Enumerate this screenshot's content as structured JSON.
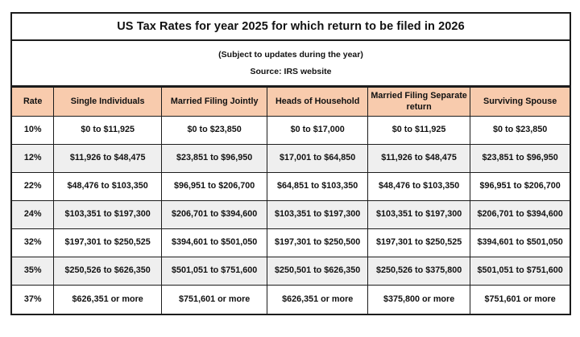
{
  "title": "US Tax Rates for year 2025 for which return to be filed in 2026",
  "subtitle_line1": "(Subject to updates during the year)",
  "subtitle_line2": "Source: IRS website",
  "colors": {
    "header_bg": "#f8cbad",
    "alt_row_bg": "#efefef",
    "border": "#1c1c1c"
  },
  "table": {
    "headers": [
      "Rate",
      "Single Individuals",
      "Married Filing Jointly",
      "Heads of Household",
      "Married Filing Separate return",
      "Surviving Spouse"
    ],
    "rows": [
      [
        "10%",
        "$0 to $11,925",
        "$0 to $23,850",
        "$0 to $17,000",
        "$0 to $11,925",
        "$0 to $23,850"
      ],
      [
        "12%",
        "$11,926 to $48,475",
        "$23,851 to $96,950",
        "$17,001 to $64,850",
        "$11,926 to $48,475",
        "$23,851 to $96,950"
      ],
      [
        "22%",
        "$48,476 to $103,350",
        "$96,951 to $206,700",
        "$64,851 to $103,350",
        "$48,476 to $103,350",
        "$96,951 to $206,700"
      ],
      [
        "24%",
        "$103,351 to $197,300",
        "$206,701 to $394,600",
        "$103,351 to $197,300",
        "$103,351 to $197,300",
        "$206,701 to $394,600"
      ],
      [
        "32%",
        "$197,301 to $250,525",
        "$394,601 to $501,050",
        "$197,301 to $250,500",
        "$197,301 to $250,525",
        "$394,601 to $501,050"
      ],
      [
        "35%",
        "$250,526 to $626,350",
        "$501,051 to $751,600",
        "$250,501 to $626,350",
        "$250,526 to $375,800",
        "$501,051 to $751,600"
      ],
      [
        "37%",
        "$626,351 or more",
        "$751,601 or more",
        "$626,351 or more",
        "$375,800 or more",
        "$751,601 or more"
      ]
    ]
  },
  "chart_data": {
    "type": "table",
    "title": "US Tax Rates for year 2025 for which return to be filed in 2026",
    "notes": [
      "(Subject to updates during the year)",
      "Source: IRS website"
    ],
    "columns": [
      "Rate",
      "Single Individuals",
      "Married Filing Jointly",
      "Heads of Household",
      "Married Filing Separate return",
      "Surviving Spouse"
    ],
    "rows": [
      [
        "10%",
        "$0 to $11,925",
        "$0 to $23,850",
        "$0 to $17,000",
        "$0 to $11,925",
        "$0 to $23,850"
      ],
      [
        "12%",
        "$11,926 to $48,475",
        "$23,851 to $96,950",
        "$17,001 to $64,850",
        "$11,926 to $48,475",
        "$23,851 to $96,950"
      ],
      [
        "22%",
        "$48,476 to $103,350",
        "$96,951 to $206,700",
        "$64,851 to $103,350",
        "$48,476 to $103,350",
        "$96,951 to $206,700"
      ],
      [
        "24%",
        "$103,351 to $197,300",
        "$206,701 to $394,600",
        "$103,351 to $197,300",
        "$103,351 to $197,300",
        "$206,701 to $394,600"
      ],
      [
        "32%",
        "$197,301 to $250,525",
        "$394,601 to $501,050",
        "$197,301 to $250,500",
        "$197,301 to $250,525",
        "$394,601 to $501,050"
      ],
      [
        "35%",
        "$250,526 to $626,350",
        "$501,051 to $751,600",
        "$250,501 to $626,350",
        "$250,526 to $375,800",
        "$501,051 to $751,600"
      ],
      [
        "37%",
        "$626,351 or more",
        "$751,601 or more",
        "$626,351 or more",
        "$375,800 or more",
        "$751,601 or more"
      ]
    ]
  }
}
